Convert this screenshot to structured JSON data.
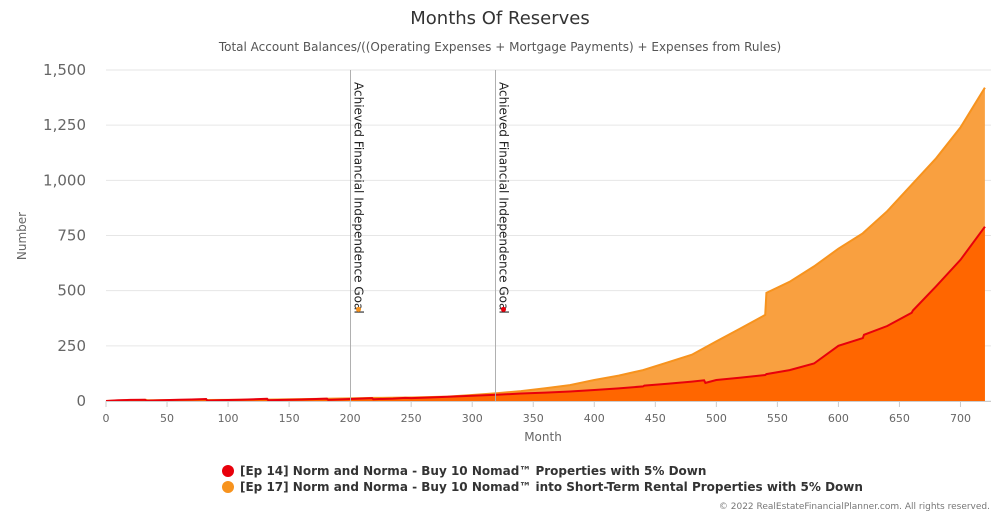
{
  "chart_data": {
    "type": "area",
    "title": "Months Of Reserves",
    "subtitle": "Total Account Balances/((Operating Expenses + Mortgage Payments) + Expenses from Rules)",
    "xlabel": "Month",
    "ylabel": "Number",
    "xlim": [
      0,
      725
    ],
    "ylim": [
      0,
      1500
    ],
    "x_ticks": [
      0,
      50,
      100,
      150,
      200,
      250,
      300,
      350,
      400,
      450,
      500,
      550,
      600,
      650,
      700
    ],
    "x_tick_labels": [
      "0",
      "50",
      "100",
      "150",
      "200",
      "250",
      "300",
      "350",
      "400",
      "450",
      "500",
      "550",
      "600",
      "650",
      "700"
    ],
    "y_ticks": [
      0,
      250,
      500,
      750,
      1000,
      1250,
      1500
    ],
    "y_tick_labels": [
      "0",
      "250",
      "500",
      "750",
      "1,000",
      "1,250",
      "1,500"
    ],
    "grid": true,
    "legend_position": "bottom",
    "plot_lines": [
      {
        "x": 200,
        "label": "Achieved Financial Independence Goal",
        "marker_y": 415,
        "color": "#f7931e"
      },
      {
        "x": 319,
        "label": "Achieved Financial Independence Goal",
        "marker_y": 415,
        "color": "#e8000b"
      }
    ],
    "series": [
      {
        "name": "[Ep 14] Norm and Norma - Buy 10 Nomad™ Properties with 5% Down",
        "color": "#e8000b",
        "fill": "#ff6600",
        "points": [
          [
            0,
            0
          ],
          [
            10,
            3
          ],
          [
            20,
            5
          ],
          [
            32,
            6
          ],
          [
            33,
            1
          ],
          [
            45,
            3
          ],
          [
            60,
            6
          ],
          [
            70,
            7
          ],
          [
            82,
            9
          ],
          [
            83,
            2
          ],
          [
            95,
            4
          ],
          [
            110,
            6
          ],
          [
            132,
            10
          ],
          [
            133,
            3
          ],
          [
            145,
            5
          ],
          [
            160,
            7
          ],
          [
            181,
            11
          ],
          [
            182,
            5
          ],
          [
            200,
            9
          ],
          [
            218,
            13
          ],
          [
            219,
            8
          ],
          [
            235,
            11
          ],
          [
            245,
            14
          ],
          [
            250,
            13
          ],
          [
            265,
            16
          ],
          [
            280,
            19
          ],
          [
            300,
            24
          ],
          [
            320,
            28
          ],
          [
            340,
            34
          ],
          [
            360,
            38
          ],
          [
            380,
            43
          ],
          [
            400,
            50
          ],
          [
            420,
            57
          ],
          [
            440,
            66
          ],
          [
            441,
            70
          ],
          [
            460,
            78
          ],
          [
            480,
            88
          ],
          [
            490,
            94
          ],
          [
            491,
            82
          ],
          [
            500,
            95
          ],
          [
            520,
            106
          ],
          [
            540,
            118
          ],
          [
            541,
            122
          ],
          [
            560,
            140
          ],
          [
            580,
            170
          ],
          [
            600,
            250
          ],
          [
            620,
            285
          ],
          [
            621,
            300
          ],
          [
            640,
            340
          ],
          [
            660,
            400
          ],
          [
            661,
            410
          ],
          [
            680,
            520
          ],
          [
            700,
            640
          ],
          [
            720,
            790
          ]
        ]
      },
      {
        "name": "[Ep 17] Norm and Norma - Buy 10 Nomad™ into Short-Term Rental Properties with 5% Down",
        "color": "#f7931e",
        "fill": "#f9a040",
        "points": [
          [
            0,
            0
          ],
          [
            20,
            4
          ],
          [
            33,
            5
          ],
          [
            34,
            3
          ],
          [
            60,
            4
          ],
          [
            100,
            5
          ],
          [
            140,
            7
          ],
          [
            180,
            10
          ],
          [
            200,
            12
          ],
          [
            220,
            14
          ],
          [
            250,
            16
          ],
          [
            280,
            20
          ],
          [
            300,
            27
          ],
          [
            320,
            35
          ],
          [
            340,
            45
          ],
          [
            360,
            58
          ],
          [
            380,
            72
          ],
          [
            400,
            95
          ],
          [
            420,
            115
          ],
          [
            440,
            140
          ],
          [
            460,
            175
          ],
          [
            480,
            210
          ],
          [
            500,
            270
          ],
          [
            520,
            330
          ],
          [
            540,
            390
          ],
          [
            541,
            490
          ],
          [
            560,
            540
          ],
          [
            580,
            610
          ],
          [
            600,
            690
          ],
          [
            620,
            760
          ],
          [
            640,
            860
          ],
          [
            660,
            980
          ],
          [
            680,
            1100
          ],
          [
            700,
            1240
          ],
          [
            720,
            1420
          ]
        ]
      }
    ]
  },
  "credits": "© 2022 RealEstateFinancialPlanner.com. All rights reserved."
}
